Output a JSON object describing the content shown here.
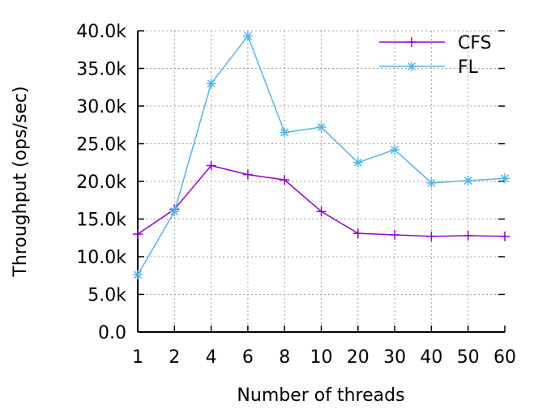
{
  "chart_data": {
    "type": "line",
    "title": "",
    "xlabel": "Number of threads",
    "ylabel": "Throughput (ops/sec)",
    "categories": [
      "1",
      "2",
      "4",
      "6",
      "8",
      "10",
      "20",
      "30",
      "40",
      "50",
      "60"
    ],
    "ylim": [
      0,
      40000
    ],
    "yticks": [
      0,
      5000,
      10000,
      15000,
      20000,
      25000,
      30000,
      35000,
      40000
    ],
    "ytick_labels": [
      "0.0",
      "5.0k",
      "10.0k",
      "15.0k",
      "20.0k",
      "25.0k",
      "30.0k",
      "35.0k",
      "40.0k"
    ],
    "grid": true,
    "legend_position": "top-right",
    "series": [
      {
        "name": "CFS",
        "color": "#9400d3",
        "marker": "plus",
        "values": [
          13000,
          16300,
          22100,
          20900,
          20200,
          16000,
          13100,
          12900,
          12700,
          12800,
          12700
        ]
      },
      {
        "name": "FL",
        "color": "#56b4e9",
        "marker": "star",
        "values": [
          7600,
          16000,
          33000,
          39300,
          26500,
          27200,
          22500,
          24200,
          19800,
          20100,
          20400
        ]
      }
    ]
  }
}
